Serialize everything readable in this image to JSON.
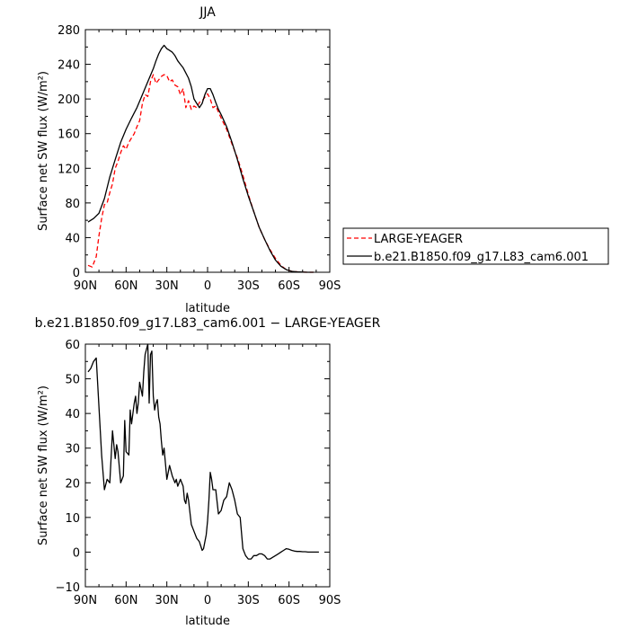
{
  "chart_data": [
    {
      "type": "line",
      "title": "JJA",
      "xlabel": "latitude",
      "ylabel": "Surface net SW flux (W/m²)",
      "xlim": [
        90,
        -90
      ],
      "ylim": [
        0,
        280
      ],
      "xticks": [
        90,
        60,
        30,
        0,
        -30,
        -60,
        -90
      ],
      "xticklabels": [
        "90N",
        "60N",
        "30N",
        "0",
        "30S",
        "60S",
        "90S"
      ],
      "yticks": [
        0,
        40,
        80,
        120,
        160,
        200,
        240,
        280
      ],
      "yticklabels": [
        "0",
        "40",
        "80",
        "120",
        "160",
        "200",
        "240",
        "280"
      ],
      "legend_position": "right",
      "series": [
        {
          "name": "LARGE-YEAGER",
          "color": "#ff0000",
          "dash": "dashed",
          "x": [
            88,
            85,
            82,
            80,
            78,
            76,
            74,
            72,
            70,
            68,
            66,
            64,
            62,
            60,
            58,
            56,
            54,
            52,
            50,
            48,
            46,
            44,
            42,
            40,
            38,
            36,
            34,
            32,
            30,
            28,
            26,
            24,
            22,
            20,
            18,
            16,
            14,
            12,
            10,
            8,
            6,
            4,
            2,
            0,
            -2,
            -4,
            -6,
            -8,
            -10,
            -14,
            -18,
            -22,
            -26,
            -30,
            -34,
            -38,
            -42,
            -46,
            -50,
            -54,
            -58,
            -62,
            -66,
            -68,
            -70,
            -74,
            -78
          ],
          "y": [
            8,
            6,
            18,
            42,
            62,
            78,
            80,
            92,
            102,
            120,
            128,
            138,
            146,
            142,
            150,
            155,
            160,
            168,
            175,
            195,
            205,
            203,
            220,
            228,
            218,
            222,
            226,
            228,
            227,
            220,
            222,
            216,
            214,
            205,
            212,
            190,
            198,
            188,
            192,
            190,
            196,
            198,
            202,
            206,
            200,
            190,
            192,
            185,
            178,
            165,
            148,
            132,
            112,
            90,
            70,
            52,
            38,
            26,
            16,
            8,
            3,
            1,
            0.5,
            0.2,
            0.1,
            0,
            0
          ]
        },
        {
          "name": "b.e21.B1850.f09_g17.L83_cam6.001",
          "color": "#000000",
          "dash": "solid",
          "x": [
            88,
            84,
            80,
            76,
            72,
            68,
            64,
            60,
            56,
            52,
            48,
            44,
            40,
            38,
            36,
            34,
            32,
            30,
            28,
            26,
            24,
            22,
            20,
            18,
            16,
            14,
            12,
            10,
            8,
            6,
            4,
            2,
            0,
            -2,
            -4,
            -6,
            -8,
            -10,
            -14,
            -18,
            -22,
            -26,
            -30,
            -34,
            -38,
            -42,
            -46,
            -50,
            -54,
            -58,
            -62,
            -66,
            -70,
            -74,
            -78
          ],
          "y": [
            58,
            62,
            68,
            85,
            110,
            130,
            150,
            165,
            178,
            190,
            205,
            220,
            235,
            244,
            252,
            258,
            262,
            258,
            256,
            254,
            250,
            244,
            240,
            236,
            230,
            224,
            214,
            200,
            195,
            190,
            195,
            205,
            212,
            212,
            205,
            196,
            188,
            182,
            168,
            150,
            130,
            108,
            88,
            70,
            52,
            38,
            25,
            14,
            7,
            3,
            1,
            0.5,
            0.2,
            0,
            0
          ]
        }
      ]
    },
    {
      "type": "line",
      "title": "b.e21.B1850.f09_g17.L83_cam6.001 − LARGE-YEAGER",
      "xlabel": "latitude",
      "ylabel": "Surface net SW flux (W/m²)",
      "xlim": [
        90,
        -90
      ],
      "ylim": [
        -10,
        60
      ],
      "xticks": [
        90,
        60,
        30,
        0,
        -30,
        -60,
        -90
      ],
      "xticklabels": [
        "90N",
        "60N",
        "30N",
        "0",
        "30S",
        "60S",
        "90S"
      ],
      "yticks": [
        -10,
        0,
        10,
        20,
        30,
        40,
        50,
        60
      ],
      "yticklabels": [
        "−10",
        "0",
        "10",
        "20",
        "30",
        "40",
        "50",
        "60"
      ],
      "series": [
        {
          "name": "",
          "color": "#000000",
          "dash": "solid",
          "x": [
            88,
            86,
            84,
            82,
            80,
            78,
            76,
            74,
            72,
            70,
            68,
            67,
            66,
            64,
            62,
            61,
            60,
            58,
            57,
            56,
            54,
            53,
            52,
            51,
            50,
            48,
            47,
            46,
            44,
            43,
            42,
            41,
            40,
            39,
            38,
            37,
            36,
            35,
            34,
            33,
            32,
            30,
            28,
            26,
            25,
            24,
            23,
            22,
            20,
            18,
            17,
            16,
            15,
            14,
            12,
            10,
            8,
            6,
            4,
            3,
            2,
            1,
            0,
            -1,
            -2,
            -3,
            -4,
            -6,
            -8,
            -10,
            -12,
            -14,
            -16,
            -18,
            -20,
            -22,
            -24,
            -26,
            -28,
            -30,
            -32,
            -34,
            -36,
            -38,
            -40,
            -42,
            -44,
            -46,
            -48,
            -50,
            -52,
            -54,
            -56,
            -58,
            -60,
            -62,
            -64,
            -66,
            -68,
            -70,
            -72,
            -74,
            -76,
            -78,
            -80,
            -82
          ],
          "y": [
            52,
            53,
            55,
            56,
            42,
            28,
            18,
            21,
            20,
            35,
            27,
            31,
            29,
            20,
            22,
            38,
            29,
            28,
            41,
            37,
            43,
            45,
            40,
            43,
            49,
            45,
            52,
            57,
            60,
            43,
            57,
            58,
            45,
            41,
            43,
            44,
            39,
            37,
            32,
            28,
            30,
            21,
            25,
            22,
            21,
            20,
            21,
            19,
            21,
            19,
            15,
            14,
            17,
            15,
            8,
            6,
            4,
            3,
            0.5,
            1,
            3,
            5,
            9,
            15,
            23,
            21,
            18,
            18,
            11,
            12,
            15,
            16,
            20,
            18,
            15,
            11,
            10,
            1,
            -1,
            -2,
            -2,
            -1,
            -1,
            -0.5,
            -0.5,
            -1,
            -2,
            -2,
            -1.5,
            -1,
            -0.5,
            0,
            0.5,
            1,
            0.8,
            0.5,
            0.3,
            0.2,
            0.2,
            0.1,
            0.1,
            0,
            0,
            0,
            0,
            0
          ]
        }
      ]
    }
  ]
}
